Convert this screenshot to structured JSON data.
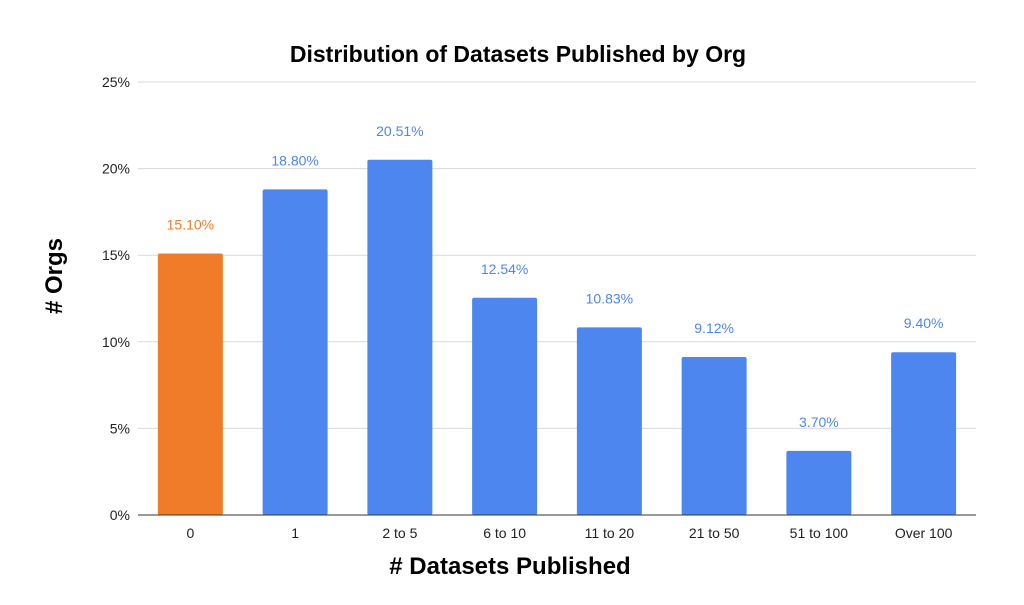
{
  "chart_data": {
    "type": "bar",
    "title": "Distribution of Datasets Published by Org",
    "xlabel": "# Datasets Published",
    "ylabel": "# Orgs",
    "categories": [
      "0",
      "1",
      "2 to 5",
      "6 to 10",
      "11 to 20",
      "21 to 50",
      "51 to 100",
      "Over 100"
    ],
    "values": [
      15.1,
      18.8,
      20.51,
      12.54,
      10.83,
      9.12,
      3.7,
      9.4
    ],
    "data_labels": [
      "15.10%",
      "18.80%",
      "20.51%",
      "12.54%",
      "10.83%",
      "9.12%",
      "3.70%",
      "9.40%"
    ],
    "bar_colors": [
      "#f07b29",
      "#4d86ee",
      "#4d86ee",
      "#4d86ee",
      "#4d86ee",
      "#4d86ee",
      "#4d86ee",
      "#4d86ee"
    ],
    "label_colors": [
      "#f07b29",
      "#4d86ee",
      "#4d86ee",
      "#4d86ee",
      "#4d86ee",
      "#4d86ee",
      "#4d86ee",
      "#4d86ee"
    ],
    "ylim": [
      0,
      25
    ],
    "yticks": [
      0,
      5,
      10,
      15,
      20,
      25
    ],
    "ytick_labels": [
      "0%",
      "5%",
      "10%",
      "15%",
      "20%",
      "25%"
    ],
    "grid": true,
    "legend": "none"
  }
}
